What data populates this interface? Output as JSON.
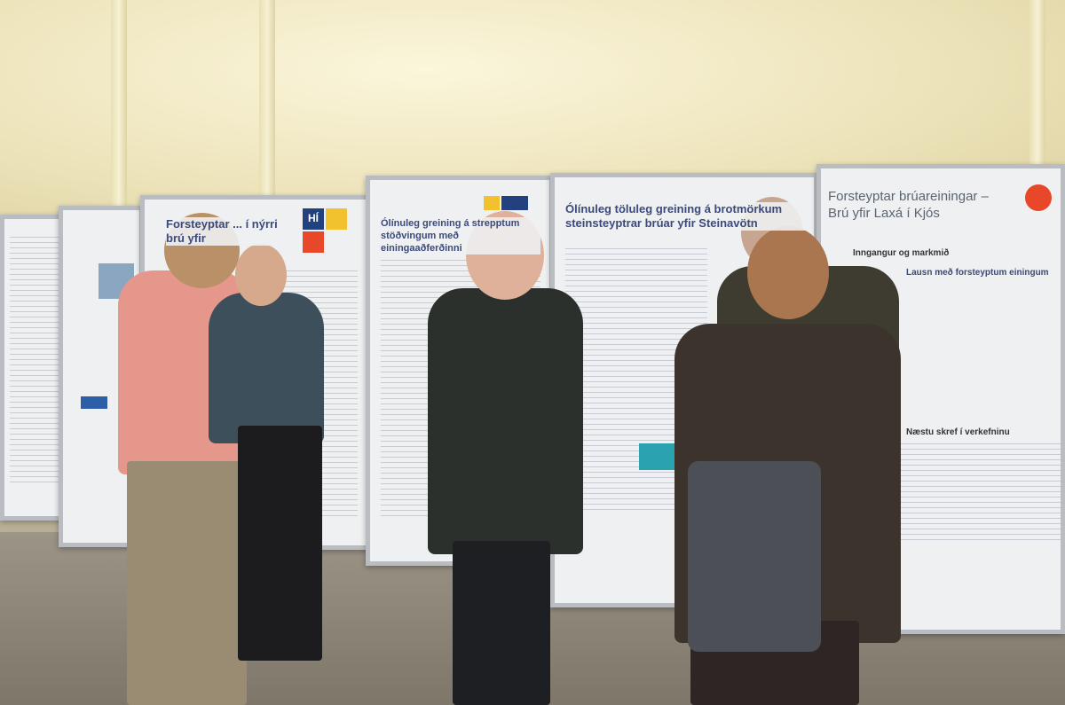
{
  "scene": "poster session",
  "posters": [
    {
      "title": "Forsteyptar ... í nýrri brú yfir",
      "logos": [
        "HÍ"
      ]
    },
    {
      "title": "Ólínuleg greining á strepptum stöðvingum með einingaaðferðinni"
    },
    {
      "title_line1": "Ólínuleg töluleg greining á brotmörkum",
      "title_line2": "steinsteyptrar brúar yfir Steinavötn"
    },
    {
      "title_line1": "Forsteyptar brúareiningar –",
      "title_line2": "Brú yfir Laxá í Kjós",
      "section_1": "Inngangur og markmið",
      "section_2": "Lausn með forsteyptum einingum",
      "section_3": "Næstu skref í verkefninu"
    }
  ],
  "colors": {
    "wall": "#f3ecc8",
    "poster": "#eef0f2",
    "title_blue": "#3b4a7a",
    "logo_red": "#e8472a",
    "logo_yellow": "#f2c12e",
    "logo_navy": "#23407f"
  }
}
